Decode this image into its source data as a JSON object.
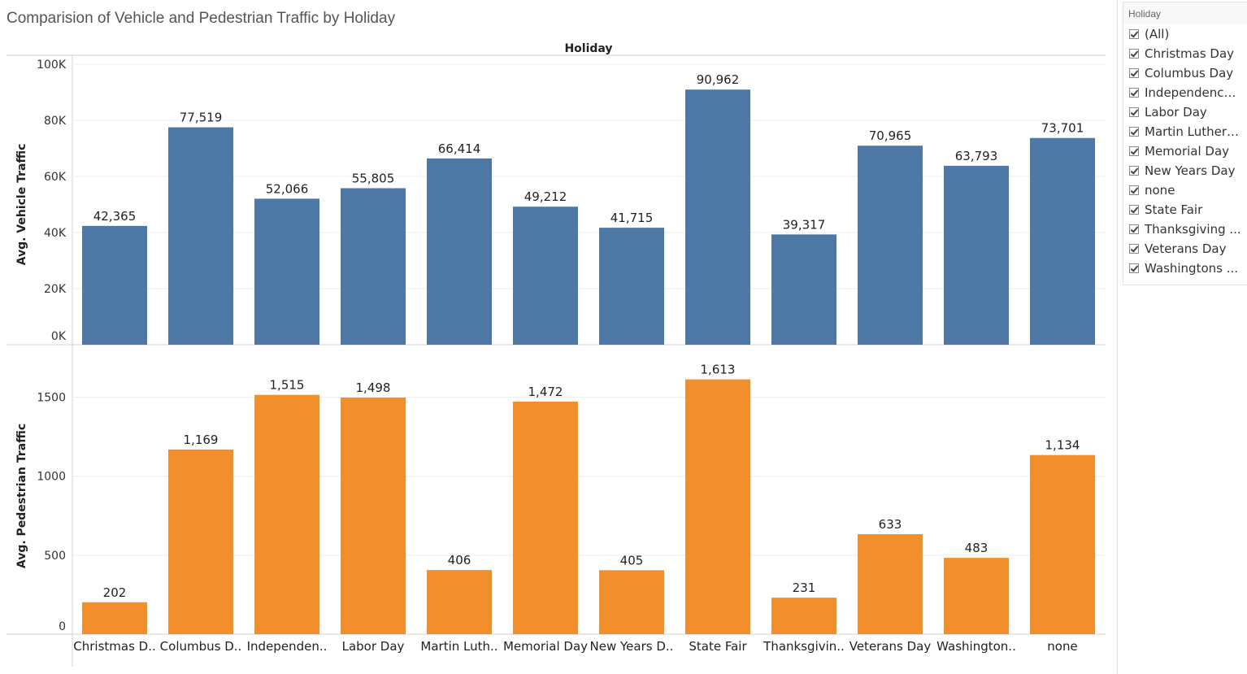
{
  "title": "Comparision of Vehicle and Pedestrian Traffic by Holiday",
  "filter": {
    "title": "Holiday",
    "items": [
      "(All)",
      "Christmas Day",
      "Columbus Day",
      "Independence ...",
      "Labor Day",
      "Martin Luther ...",
      "Memorial Day",
      "New Years Day",
      "none",
      "State Fair",
      "Thanksgiving ...",
      "Veterans Day",
      "Washingtons ..."
    ]
  },
  "chart_data": {
    "type": "bar",
    "column_header": "Holiday",
    "categories": [
      "Christmas D..",
      "Columbus D..",
      "Independen..",
      "Labor Day",
      "Martin Luth..",
      "Memorial Day",
      "New Years D..",
      "State Fair",
      "Thanksgivin..",
      "Veterans Day",
      "Washington..",
      "none"
    ],
    "panels": [
      {
        "ylabel": "Avg. Vehicle Traffic",
        "values": [
          42365,
          77519,
          52066,
          55805,
          66414,
          49212,
          41715,
          90962,
          39317,
          70965,
          63793,
          73701
        ],
        "value_labels": [
          "42,365",
          "77,519",
          "52,066",
          "55,805",
          "66,414",
          "49,212",
          "41,715",
          "90,962",
          "39,317",
          "70,965",
          "63,793",
          "73,701"
        ],
        "ylim": [
          0,
          100000
        ],
        "ticks": [
          0,
          20000,
          40000,
          60000,
          80000,
          100000
        ],
        "tick_labels": [
          "0K",
          "20K",
          "40K",
          "60K",
          "80K",
          "100K"
        ],
        "color": "#4e79a7"
      },
      {
        "ylabel": "Avg. Pedestrian Traffic",
        "values": [
          202,
          1169,
          1515,
          1498,
          406,
          1472,
          405,
          1613,
          231,
          633,
          483,
          1134
        ],
        "value_labels": [
          "202",
          "1,169",
          "1,515",
          "1,498",
          "406",
          "1,472",
          "405",
          "1,613",
          "231",
          "633",
          "483",
          "1,134"
        ],
        "ylim": [
          0,
          1750
        ],
        "ticks": [
          0,
          500,
          1000,
          1500
        ],
        "tick_labels": [
          "0",
          "500",
          "1000",
          "1500"
        ],
        "color": "#f28e2b"
      }
    ],
    "grid": true,
    "legend": "right"
  }
}
